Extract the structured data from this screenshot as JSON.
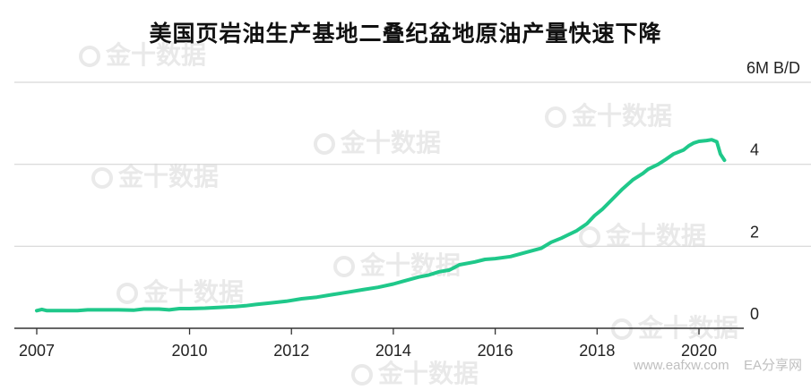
{
  "watermark": {
    "text": "金十数据"
  },
  "footer": {
    "site": "www.eafxw.com",
    "brand": "EA分享网"
  },
  "colors": {
    "line": "#1fc88a",
    "grid": "#d6d6d6",
    "axis": "#333333",
    "text": "#222222"
  },
  "chart_data": {
    "type": "line",
    "title": "美国页岩油生产基地二叠纪盆地原油产量快速下降",
    "unit_label": "6M B/D",
    "xlabel": "",
    "ylabel": "",
    "xlim": [
      2006.9,
      2020.8
    ],
    "ylim": [
      0,
      6
    ],
    "y_ticks": [
      {
        "value": 0,
        "label": "0"
      },
      {
        "value": 2,
        "label": "2"
      },
      {
        "value": 4,
        "label": "4"
      },
      {
        "value": 6,
        "label": "6M B/D"
      }
    ],
    "x_ticks": [
      {
        "value": 2007,
        "label": "2007"
      },
      {
        "value": 2010,
        "label": "2010"
      },
      {
        "value": 2012,
        "label": "2012"
      },
      {
        "value": 2014,
        "label": "2014"
      },
      {
        "value": 2016,
        "label": "2016"
      },
      {
        "value": 2018,
        "label": "2018"
      },
      {
        "value": 2020,
        "label": "2020"
      }
    ],
    "grid": true,
    "series": [
      {
        "x": [
          2007.0,
          2007.1,
          2007.2,
          2007.5,
          2007.8,
          2008.0,
          2008.3,
          2008.6,
          2008.9,
          2009.1,
          2009.4,
          2009.6,
          2009.8,
          2010.0,
          2010.3,
          2010.6,
          2010.9,
          2011.1,
          2011.3,
          2011.6,
          2011.9,
          2012.2,
          2012.5,
          2012.8,
          2013.1,
          2013.4,
          2013.7,
          2014.0,
          2014.2,
          2014.5,
          2014.7,
          2014.9,
          2015.1,
          2015.3,
          2015.6,
          2015.8,
          2016.0,
          2016.3,
          2016.6,
          2016.9,
          2017.1,
          2017.3,
          2017.6,
          2017.8,
          2017.95,
          2018.1,
          2018.3,
          2018.5,
          2018.7,
          2018.9,
          2019.0,
          2019.2,
          2019.35,
          2019.5,
          2019.7,
          2019.8,
          2019.9,
          2020.0,
          2020.15,
          2020.25,
          2020.35,
          2020.42,
          2020.5
        ],
        "y": [
          0.43,
          0.46,
          0.43,
          0.43,
          0.43,
          0.45,
          0.45,
          0.45,
          0.44,
          0.47,
          0.47,
          0.45,
          0.48,
          0.48,
          0.49,
          0.51,
          0.53,
          0.55,
          0.58,
          0.62,
          0.66,
          0.72,
          0.76,
          0.82,
          0.88,
          0.94,
          1.0,
          1.08,
          1.15,
          1.25,
          1.3,
          1.38,
          1.42,
          1.55,
          1.62,
          1.68,
          1.7,
          1.75,
          1.85,
          1.95,
          2.1,
          2.2,
          2.38,
          2.55,
          2.75,
          2.9,
          3.15,
          3.4,
          3.62,
          3.78,
          3.88,
          4.0,
          4.12,
          4.25,
          4.35,
          4.45,
          4.52,
          4.56,
          4.58,
          4.6,
          4.55,
          4.25,
          4.1
        ]
      }
    ]
  }
}
